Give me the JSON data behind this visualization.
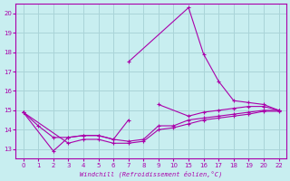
{
  "xlabel": "Windchill (Refroidissement éolien,°C)",
  "bg_color": "#c8eef0",
  "grid_color": "#aad4d8",
  "line_color": "#aa00aa",
  "ylim": [
    12.5,
    20.5
  ],
  "yticks": [
    13,
    14,
    15,
    16,
    17,
    18,
    19,
    20
  ],
  "xtick_labels": [
    "0",
    "1",
    "2",
    "3",
    "4",
    "5",
    "6",
    "7",
    "8",
    "9",
    "10",
    "15",
    "16",
    "17",
    "18",
    "19",
    "20",
    "22"
  ],
  "lines": [
    {
      "xi": [
        0,
        1,
        2,
        3,
        4,
        5,
        6,
        7
      ],
      "y": [
        14.9,
        14.2,
        13.6,
        13.6,
        13.7,
        13.7,
        13.5,
        14.5
      ]
    },
    {
      "xi": [
        0,
        2,
        3,
        4,
        5,
        6,
        7,
        8,
        9,
        10,
        11,
        12,
        13,
        14,
        15,
        16,
        17
      ],
      "y": [
        14.9,
        12.9,
        13.6,
        13.7,
        13.7,
        13.5,
        13.4,
        13.5,
        14.2,
        14.2,
        14.5,
        14.6,
        14.7,
        14.8,
        14.9,
        15.0,
        15.0
      ]
    },
    {
      "xi": [
        0,
        3,
        4,
        5,
        6,
        7,
        8,
        9,
        10,
        11,
        12,
        13,
        14,
        15,
        16,
        17
      ],
      "y": [
        14.9,
        13.3,
        13.5,
        13.5,
        13.3,
        13.3,
        13.4,
        14.0,
        14.1,
        14.3,
        14.5,
        14.6,
        14.7,
        14.8,
        14.95,
        14.95
      ]
    },
    {
      "xi": [
        7,
        11,
        12,
        13,
        14,
        15,
        16,
        17
      ],
      "y": [
        17.5,
        20.3,
        17.9,
        16.5,
        15.5,
        15.4,
        15.3,
        15.0
      ]
    },
    {
      "xi": [
        9,
        11,
        12,
        13,
        14,
        15,
        16,
        17
      ],
      "y": [
        15.3,
        14.7,
        14.9,
        15.0,
        15.1,
        15.2,
        15.2,
        15.0
      ]
    }
  ]
}
